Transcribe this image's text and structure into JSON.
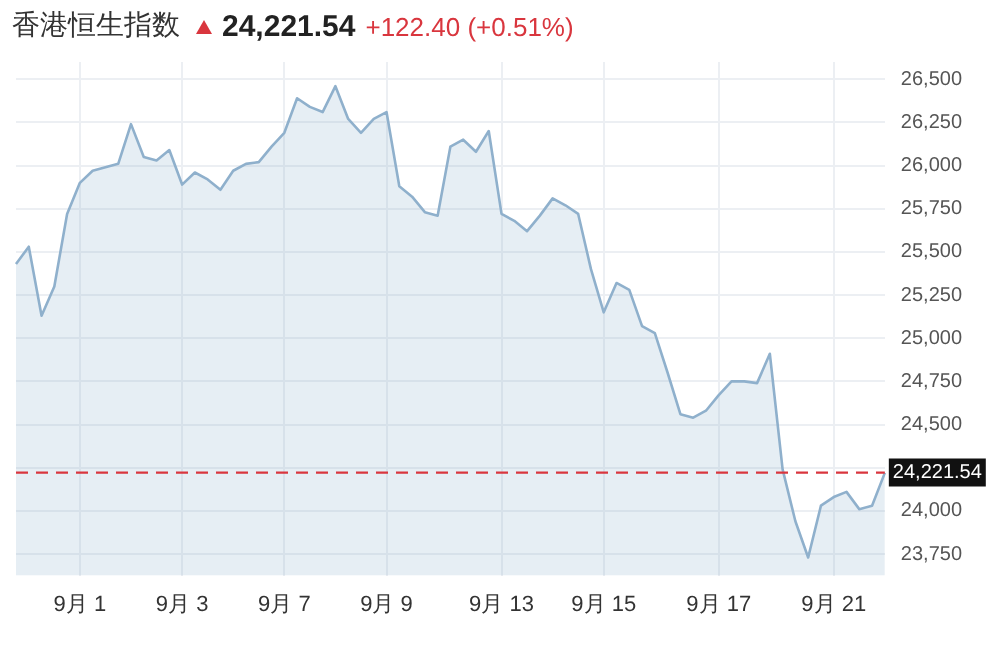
{
  "chart_data": {
    "type": "area",
    "title": "香港恒生指数",
    "subtitle": "24,221.54",
    "annotations": [
      "+122.40 (+0.51%)"
    ],
    "categories": [
      null,
      null,
      null,
      null,
      null,
      "9月 1",
      null,
      null,
      null,
      null,
      null,
      null,
      null,
      "9月 3",
      null,
      null,
      null,
      null,
      null,
      null,
      null,
      "9月 7",
      null,
      null,
      null,
      null,
      null,
      null,
      null,
      "9月 9",
      null,
      null,
      null,
      null,
      null,
      null,
      null,
      null,
      "9月 13",
      null,
      null,
      null,
      null,
      null,
      null,
      null,
      "9月 15",
      null,
      null,
      null,
      null,
      null,
      null,
      null,
      null,
      "9月 17",
      null,
      null,
      null,
      null,
      null,
      null,
      null,
      null,
      "9月 21",
      null,
      null,
      null,
      null
    ],
    "series": [
      {
        "color": "#8fb0cc",
        "values": [
          25430,
          25530,
          25130,
          25300,
          25720,
          25900,
          25970,
          25990,
          26010,
          26240,
          26050,
          26030,
          26090,
          25890,
          25960,
          25920,
          25860,
          25970,
          26010,
          26020,
          26110,
          26190,
          26390,
          26340,
          26310,
          26460,
          26270,
          26190,
          26270,
          26310,
          25880,
          25820,
          25730,
          25710,
          26110,
          26150,
          26080,
          26200,
          25720,
          25680,
          25620,
          25710,
          25810,
          25770,
          25720,
          25400,
          25150,
          25320,
          25280,
          25070,
          25030,
          24800,
          24560,
          24540,
          24580,
          24670,
          24750,
          24750,
          24740,
          24910,
          24240,
          23940,
          23730,
          24030,
          24080,
          24110,
          24010,
          24030,
          24220
        ]
      }
    ],
    "ylim": [
      23625,
      26600
    ],
    "yticks": [
      {
        "value": 23750,
        "label": "23,750"
      },
      {
        "value": 24000,
        "label": "24,000"
      },
      {
        "value": 24250,
        "label": null
      },
      {
        "value": 24500,
        "label": "24,500"
      },
      {
        "value": 24750,
        "label": "24,750"
      },
      {
        "value": 25000,
        "label": "25,000"
      },
      {
        "value": 25250,
        "label": "25,250"
      },
      {
        "value": 25500,
        "label": "25,500"
      },
      {
        "value": 25750,
        "label": "25,750"
      },
      {
        "value": 26000,
        "label": "26,000"
      },
      {
        "value": 26250,
        "label": "26,250"
      },
      {
        "value": 26500,
        "label": "26,500"
      }
    ],
    "ref_lines": [
      {
        "axis": "y",
        "value": 24221.54,
        "label": "24,221.54",
        "color": "#d9363e",
        "line_style": "dashed"
      }
    ],
    "grid": true,
    "legend": false,
    "marker": "none"
  }
}
